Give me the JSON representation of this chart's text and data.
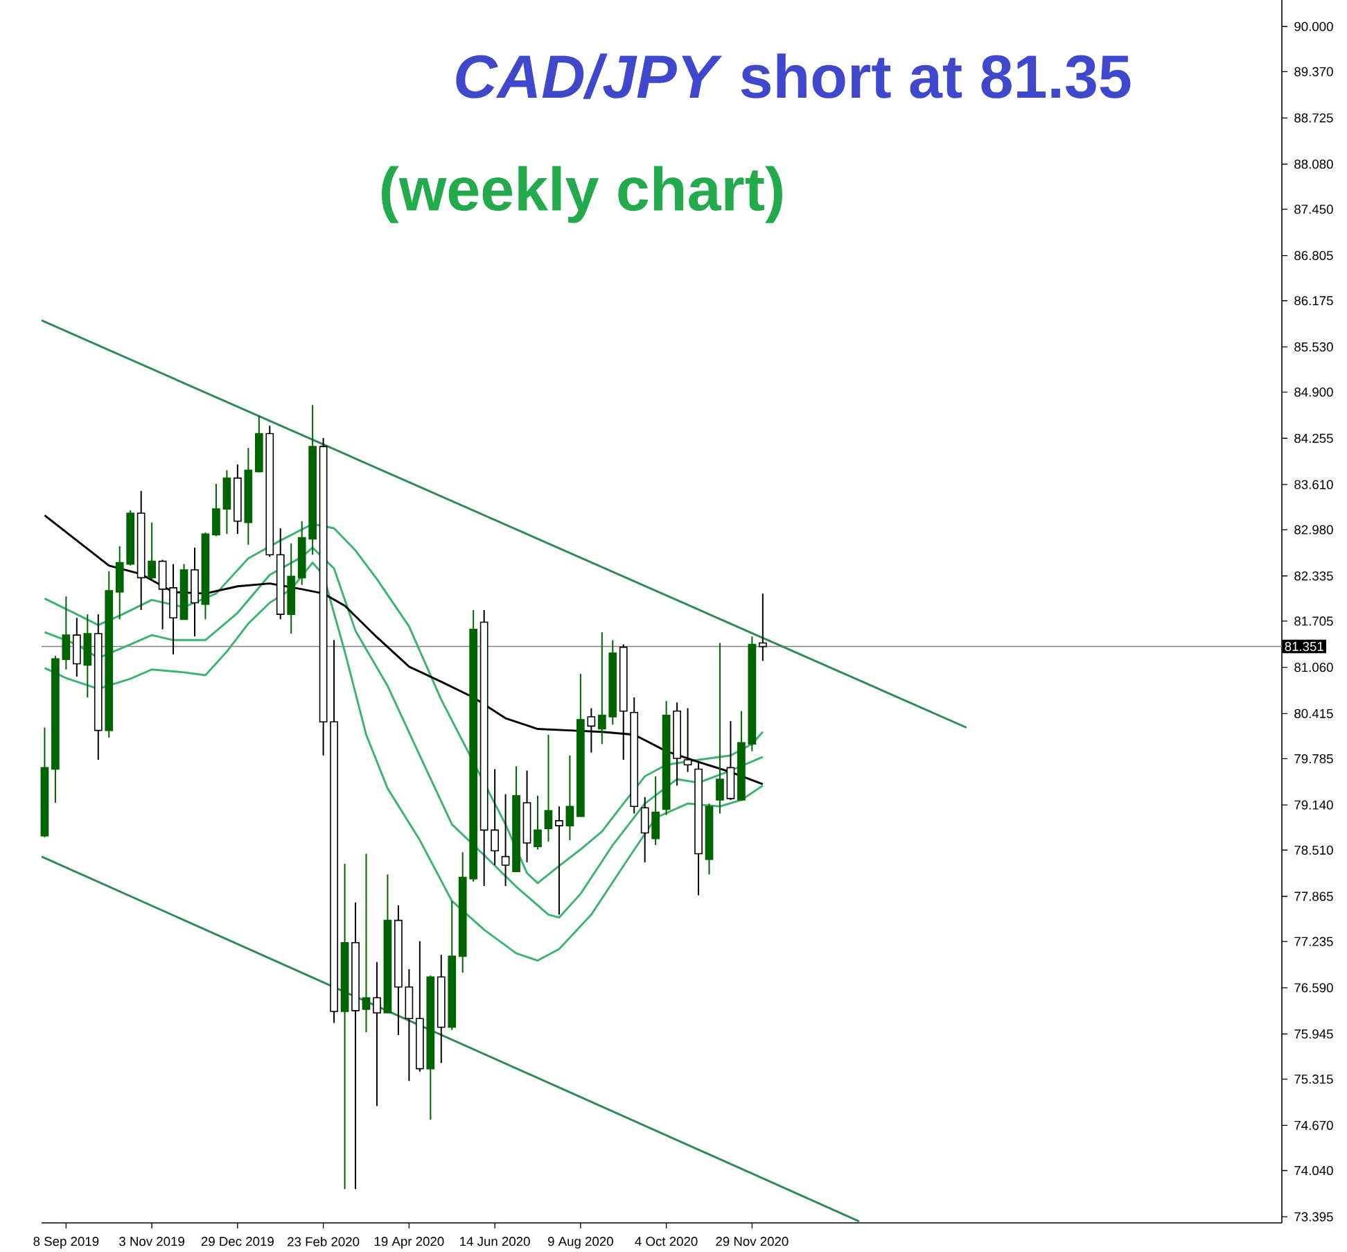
{
  "chart_data": {
    "type": "candlestick",
    "title": "*CAD/JPY*  short at  81.35",
    "subtitle": "(weekly chart)",
    "x": [
      "2019-08-25",
      "2019-09-01",
      "2019-09-08",
      "2019-09-15",
      "2019-09-22",
      "2019-09-29",
      "2019-10-06",
      "2019-10-13",
      "2019-10-20",
      "2019-10-27",
      "2019-11-03",
      "2019-11-10",
      "2019-11-17",
      "2019-11-24",
      "2019-12-01",
      "2019-12-08",
      "2019-12-15",
      "2019-12-22",
      "2019-12-29",
      "2020-01-05",
      "2020-01-12",
      "2020-01-19",
      "2020-01-26",
      "2020-02-02",
      "2020-02-09",
      "2020-02-16",
      "2020-02-23",
      "2020-03-01",
      "2020-03-08",
      "2020-03-15",
      "2020-03-22",
      "2020-03-29",
      "2020-04-05",
      "2020-04-12",
      "2020-04-19",
      "2020-04-26",
      "2020-05-03",
      "2020-05-10",
      "2020-05-17",
      "2020-05-24",
      "2020-05-31",
      "2020-06-07",
      "2020-06-14",
      "2020-06-21",
      "2020-06-28",
      "2020-07-05",
      "2020-07-12",
      "2020-07-19",
      "2020-07-26",
      "2020-08-02",
      "2020-08-09",
      "2020-08-16",
      "2020-08-23",
      "2020-08-30",
      "2020-09-06",
      "2020-09-13",
      "2020-09-20",
      "2020-09-27",
      "2020-10-04",
      "2020-10-11",
      "2020-10-18",
      "2020-10-25",
      "2020-11-01",
      "2020-11-08",
      "2020-11-15",
      "2020-11-22",
      "2020-11-29",
      "2020-12-06"
    ],
    "ohlc": [
      [
        78.71,
        80.22,
        78.69,
        79.66
      ],
      [
        79.64,
        81.22,
        79.17,
        81.18
      ],
      [
        81.17,
        82.05,
        81.03,
        81.51
      ],
      [
        81.51,
        81.75,
        80.93,
        81.11
      ],
      [
        81.09,
        81.8,
        80.64,
        81.53
      ],
      [
        81.53,
        81.8,
        79.77,
        80.18
      ],
      [
        80.18,
        82.4,
        80.08,
        82.13
      ],
      [
        82.11,
        82.75,
        81.73,
        82.52
      ],
      [
        82.5,
        83.25,
        82.48,
        83.21
      ],
      [
        83.21,
        83.52,
        81.86,
        82.31
      ],
      [
        82.31,
        83.08,
        82.29,
        82.54
      ],
      [
        82.54,
        82.56,
        81.59,
        82.15
      ],
      [
        82.17,
        82.5,
        81.24,
        81.75
      ],
      [
        81.73,
        82.5,
        81.73,
        82.42
      ],
      [
        82.42,
        82.73,
        81.49,
        81.96
      ],
      [
        81.94,
        82.94,
        81.73,
        82.92
      ],
      [
        82.91,
        83.62,
        82.89,
        83.27
      ],
      [
        83.27,
        83.81,
        82.92,
        83.7
      ],
      [
        83.7,
        83.89,
        82.92,
        83.1
      ],
      [
        83.08,
        84.12,
        82.77,
        83.81
      ],
      [
        83.79,
        84.57,
        83.78,
        84.32
      ],
      [
        84.32,
        84.43,
        82.6,
        82.63
      ],
      [
        82.63,
        83.0,
        81.73,
        81.8
      ],
      [
        81.8,
        82.79,
        81.53,
        82.33
      ],
      [
        82.31,
        83.1,
        82.21,
        82.87
      ],
      [
        82.85,
        84.72,
        82.63,
        84.14
      ],
      [
        84.14,
        84.26,
        79.83,
        80.3
      ],
      [
        80.3,
        81.44,
        76.1,
        76.26
      ],
      [
        76.26,
        78.32,
        73.78,
        77.22
      ],
      [
        77.22,
        77.78,
        73.78,
        76.27
      ],
      [
        76.29,
        78.46,
        75.97,
        76.45
      ],
      [
        76.45,
        76.95,
        74.94,
        76.24
      ],
      [
        76.24,
        78.17,
        76.24,
        77.53
      ],
      [
        77.53,
        77.74,
        75.93,
        76.6
      ],
      [
        76.6,
        76.85,
        75.29,
        76.16
      ],
      [
        76.16,
        77.24,
        75.42,
        75.46
      ],
      [
        75.46,
        76.76,
        74.75,
        76.74
      ],
      [
        76.74,
        77.05,
        75.54,
        76.04
      ],
      [
        76.04,
        77.8,
        76.0,
        77.03
      ],
      [
        77.03,
        78.48,
        76.8,
        78.13
      ],
      [
        78.11,
        81.86,
        78.07,
        81.59
      ],
      [
        81.69,
        81.86,
        78.01,
        78.79
      ],
      [
        78.79,
        79.64,
        78.3,
        78.5
      ],
      [
        78.42,
        79.29,
        78.01,
        78.3
      ],
      [
        78.21,
        79.68,
        78.21,
        79.27
      ],
      [
        79.17,
        79.62,
        78.34,
        78.61
      ],
      [
        78.56,
        79.27,
        78.52,
        78.79
      ],
      [
        78.81,
        80.12,
        78.63,
        79.06
      ],
      [
        78.92,
        79.12,
        77.61,
        78.85
      ],
      [
        78.85,
        79.83,
        78.65,
        79.12
      ],
      [
        78.98,
        80.97,
        78.98,
        80.33
      ],
      [
        80.37,
        80.49,
        79.87,
        80.24
      ],
      [
        80.2,
        81.55,
        79.99,
        80.39
      ],
      [
        80.37,
        81.44,
        80.26,
        81.26
      ],
      [
        81.34,
        81.38,
        79.77,
        80.45
      ],
      [
        80.43,
        80.64,
        79.02,
        79.12
      ],
      [
        79.1,
        79.25,
        78.34,
        78.75
      ],
      [
        78.67,
        79.54,
        78.58,
        79.04
      ],
      [
        79.08,
        80.59,
        79.0,
        80.39
      ],
      [
        80.45,
        80.57,
        79.41,
        79.79
      ],
      [
        79.77,
        80.49,
        79.6,
        79.7
      ],
      [
        79.64,
        79.74,
        77.88,
        78.46
      ],
      [
        78.38,
        79.16,
        78.17,
        79.12
      ],
      [
        79.21,
        81.4,
        79.02,
        79.5
      ],
      [
        79.66,
        80.31,
        79.21,
        79.23
      ],
      [
        79.21,
        80.45,
        79.21,
        80.01
      ],
      [
        79.99,
        81.49,
        79.89,
        81.38
      ],
      [
        81.4,
        82.09,
        81.15,
        81.35
      ]
    ],
    "colors": [
      "#006400",
      "#006400",
      "#006400",
      "#ffffff",
      "#006400",
      "#ffffff",
      "#006400",
      "#006400",
      "#006400",
      "#ffffff",
      "#006400",
      "#ffffff",
      "#ffffff",
      "#006400",
      "#ffffff",
      "#006400",
      "#006400",
      "#006400",
      "#ffffff",
      "#006400",
      "#006400",
      "#ffffff",
      "#ffffff",
      "#006400",
      "#006400",
      "#006400",
      "#ffffff",
      "#ffffff",
      "#006400",
      "#ffffff",
      "#006400",
      "#ffffff",
      "#006400",
      "#ffffff",
      "#ffffff",
      "#ffffff",
      "#006400",
      "#ffffff",
      "#006400",
      "#006400",
      "#006400",
      "#ffffff",
      "#ffffff",
      "#ffffff",
      "#006400",
      "#ffffff",
      "#006400",
      "#006400",
      "#ffffff",
      "#006400",
      "#006400",
      "#ffffff",
      "#006400",
      "#006400",
      "#ffffff",
      "#ffffff",
      "#ffffff",
      "#006400",
      "#006400",
      "#ffffff",
      "#ffffff",
      "#ffffff",
      "#006400",
      "#006400",
      "#ffffff",
      "#006400",
      "#006400",
      "#ffffff"
    ],
    "series": [
      {
        "type": "line",
        "color": "#3cb371",
        "x": [
          "2019-08-25",
          "2019-09-15",
          "2019-09-29",
          "2019-10-13",
          "2019-11-03",
          "2019-11-24",
          "2019-12-15",
          "2020-01-05",
          "2020-01-26",
          "2020-02-16",
          "2020-03-01",
          "2020-03-15",
          "2020-03-29",
          "2020-04-19",
          "2020-05-10",
          "2020-05-31",
          "2020-06-21",
          "2020-07-05",
          "2020-07-12",
          "2020-07-26",
          "2020-08-09",
          "2020-08-23",
          "2020-09-06",
          "2020-09-20",
          "2020-10-04",
          "2020-10-25",
          "2020-11-15",
          "2020-11-29",
          "2020-12-06"
        ],
        "values": [
          82.02,
          81.8,
          81.65,
          81.78,
          82.0,
          81.9,
          82.09,
          82.58,
          82.83,
          83.06,
          83.0,
          82.69,
          82.29,
          81.63,
          80.61,
          79.74,
          78.87,
          78.19,
          78.05,
          78.29,
          78.52,
          78.77,
          79.16,
          79.54,
          79.7,
          79.77,
          79.83,
          79.99,
          80.16
        ]
      },
      {
        "type": "line",
        "color": "#3cb371",
        "x": [
          "2019-08-25",
          "2019-09-15",
          "2019-09-29",
          "2019-10-20",
          "2019-11-03",
          "2019-11-17",
          "2019-12-08",
          "2019-12-29",
          "2020-01-19",
          "2020-02-09",
          "2020-02-16",
          "2020-03-01",
          "2020-03-15",
          "2020-04-05",
          "2020-04-26",
          "2020-05-17",
          "2020-06-07",
          "2020-06-28",
          "2020-07-19",
          "2020-07-26",
          "2020-08-09",
          "2020-08-30",
          "2020-09-20",
          "2020-10-11",
          "2020-10-25",
          "2020-11-15",
          "2020-12-06"
        ],
        "values": [
          81.55,
          81.38,
          81.19,
          81.38,
          81.51,
          81.44,
          81.44,
          81.82,
          82.35,
          82.6,
          82.73,
          82.44,
          81.57,
          80.8,
          79.83,
          78.87,
          78.44,
          78.0,
          77.61,
          77.57,
          77.9,
          78.58,
          79.16,
          79.5,
          79.45,
          79.62,
          79.81
        ]
      },
      {
        "type": "line",
        "color": "#3cb371",
        "x": [
          "2019-08-25",
          "2019-09-08",
          "2019-09-29",
          "2019-10-20",
          "2019-11-03",
          "2019-11-24",
          "2019-12-08",
          "2019-12-22",
          "2020-01-05",
          "2020-01-19",
          "2020-02-02",
          "2020-02-16",
          "2020-02-23",
          "2020-03-08",
          "2020-03-22",
          "2020-04-05",
          "2020-04-26",
          "2020-05-17",
          "2020-06-07",
          "2020-06-28",
          "2020-07-12",
          "2020-07-26",
          "2020-08-16",
          "2020-09-06",
          "2020-09-27",
          "2020-10-18",
          "2020-11-08",
          "2020-11-22",
          "2020-12-06"
        ],
        "values": [
          81.05,
          80.91,
          80.76,
          80.9,
          81.03,
          80.99,
          80.95,
          81.28,
          81.67,
          81.96,
          82.15,
          82.52,
          82.35,
          81.28,
          80.12,
          79.37,
          78.65,
          77.8,
          77.4,
          77.07,
          76.97,
          77.13,
          77.61,
          78.29,
          78.96,
          79.16,
          79.12,
          79.21,
          79.41
        ]
      },
      {
        "type": "line",
        "color": "#000000",
        "x": [
          "2019-08-25",
          "2019-09-15",
          "2019-10-06",
          "2019-10-27",
          "2019-11-17",
          "2019-12-08",
          "2019-12-29",
          "2020-01-19",
          "2020-02-09",
          "2020-02-23",
          "2020-03-08",
          "2020-03-29",
          "2020-04-19",
          "2020-05-10",
          "2020-05-31",
          "2020-06-21",
          "2020-07-12",
          "2020-08-02",
          "2020-08-23",
          "2020-09-13",
          "2020-10-04",
          "2020-10-25",
          "2020-11-15",
          "2020-12-06"
        ],
        "values": [
          83.18,
          82.83,
          82.48,
          82.36,
          82.11,
          82.09,
          82.19,
          82.23,
          82.15,
          82.09,
          81.92,
          81.48,
          81.07,
          80.86,
          80.64,
          80.35,
          80.2,
          80.18,
          80.16,
          80.12,
          79.89,
          79.74,
          79.6,
          79.43
        ]
      },
      {
        "type": "line",
        "color": "#2e8b57",
        "x": [
          "2019-08-23",
          "2021-04-18"
        ],
        "values": [
          85.9,
          80.22
        ]
      },
      {
        "type": "line",
        "color": "#2e8b57",
        "x": [
          "2019-08-23",
          "2021-02-07"
        ],
        "values": [
          78.42,
          73.33
        ]
      }
    ],
    "ref_lines": [
      {
        "axis": "y",
        "value": 81.351,
        "label": "81.351",
        "color": "#808080"
      }
    ],
    "xlim": [
      "2019-08-23",
      "2021-11-10"
    ],
    "ylim": [
      73.31,
      90.37
    ],
    "xticks": [
      {
        "value": "2019-09-08",
        "label": "8 Sep 2019"
      },
      {
        "value": "2019-11-03",
        "label": "3 Nov 2019"
      },
      {
        "value": "2019-12-29",
        "label": "29 Dec 2019"
      },
      {
        "value": "2020-02-23",
        "label": "23 Feb 2020"
      },
      {
        "value": "2020-04-19",
        "label": "19 Apr 2020"
      },
      {
        "value": "2020-06-14",
        "label": "14 Jun 2020"
      },
      {
        "value": "2020-08-09",
        "label": "9 Aug 2020"
      },
      {
        "value": "2020-10-04",
        "label": "4 Oct 2020"
      },
      {
        "value": "2020-11-29",
        "label": "29 Nov 2020"
      }
    ],
    "yticks": [
      {
        "value": 90.0,
        "label": "90.000"
      },
      {
        "value": 89.37,
        "label": "89.370"
      },
      {
        "value": 88.725,
        "label": "88.725"
      },
      {
        "value": 88.08,
        "label": "88.080"
      },
      {
        "value": 87.45,
        "label": "87.450"
      },
      {
        "value": 86.805,
        "label": "86.805"
      },
      {
        "value": 86.175,
        "label": "86.175"
      },
      {
        "value": 85.53,
        "label": "85.530"
      },
      {
        "value": 84.9,
        "label": "84.900"
      },
      {
        "value": 84.255,
        "label": "84.255"
      },
      {
        "value": 83.61,
        "label": "83.610"
      },
      {
        "value": 82.98,
        "label": "82.980"
      },
      {
        "value": 82.335,
        "label": "82.335"
      },
      {
        "value": 81.705,
        "label": "81.705"
      },
      {
        "value": 81.06,
        "label": "81.060"
      },
      {
        "value": 80.415,
        "label": "80.415"
      },
      {
        "value": 79.785,
        "label": "79.785"
      },
      {
        "value": 79.14,
        "label": "79.140"
      },
      {
        "value": 78.51,
        "label": "78.510"
      },
      {
        "value": 77.865,
        "label": "77.865"
      },
      {
        "value": 77.235,
        "label": "77.235"
      },
      {
        "value": 76.59,
        "label": "76.590"
      },
      {
        "value": 75.945,
        "label": "75.945"
      },
      {
        "value": 75.315,
        "label": "75.315"
      },
      {
        "value": 74.67,
        "label": "74.670"
      },
      {
        "value": 74.04,
        "label": "74.040"
      },
      {
        "value": 73.395,
        "label": "73.395"
      }
    ]
  }
}
